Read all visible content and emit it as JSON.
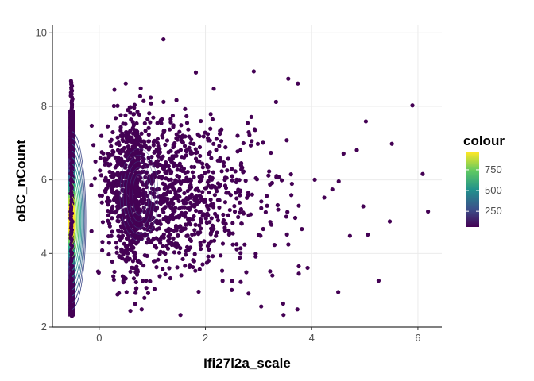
{
  "chart_data": {
    "type": "scatter",
    "title": "",
    "xlabel": "Ifi27l2a_scale",
    "ylabel": "oBC_nCount",
    "xlim": [
      -0.88,
      6.45
    ],
    "ylim": [
      2.0,
      10.2
    ],
    "x_ticks": [
      0,
      2,
      4,
      6
    ],
    "y_ticks": [
      2,
      4,
      6,
      8,
      10
    ],
    "grid": true,
    "point_color": "#440154",
    "stripe_x": -0.52,
    "stripe_y_range": [
      2.3,
      8.7
    ],
    "highlight_points": [
      {
        "x": 1.21,
        "y": 9.82
      },
      {
        "x": 1.82,
        "y": 8.92
      },
      {
        "x": 2.91,
        "y": 8.95
      },
      {
        "x": 0.5,
        "y": 8.62
      },
      {
        "x": 3.56,
        "y": 8.75
      },
      {
        "x": 3.74,
        "y": 8.62
      },
      {
        "x": 5.02,
        "y": 7.59
      },
      {
        "x": 5.51,
        "y": 6.98
      },
      {
        "x": 4.85,
        "y": 6.81
      },
      {
        "x": 6.09,
        "y": 6.16
      },
      {
        "x": 6.19,
        "y": 5.14
      },
      {
        "x": 4.97,
        "y": 5.28
      },
      {
        "x": 5.47,
        "y": 4.87
      },
      {
        "x": 4.72,
        "y": 4.48
      },
      {
        "x": 5.26,
        "y": 3.26
      },
      {
        "x": 3.05,
        "y": 2.56
      },
      {
        "x": 3.47,
        "y": 2.33
      },
      {
        "x": 4.5,
        "y": 2.95
      },
      {
        "x": 1.53,
        "y": 2.33
      },
      {
        "x": 0.8,
        "y": 2.48
      },
      {
        "x": 3.73,
        "y": 2.48
      }
    ],
    "density": {
      "center": [
        0.75,
        5.6
      ],
      "legend_title": "colour",
      "legend_ticks": [
        250,
        500,
        750
      ],
      "legend_range": [
        60,
        960
      ]
    }
  }
}
